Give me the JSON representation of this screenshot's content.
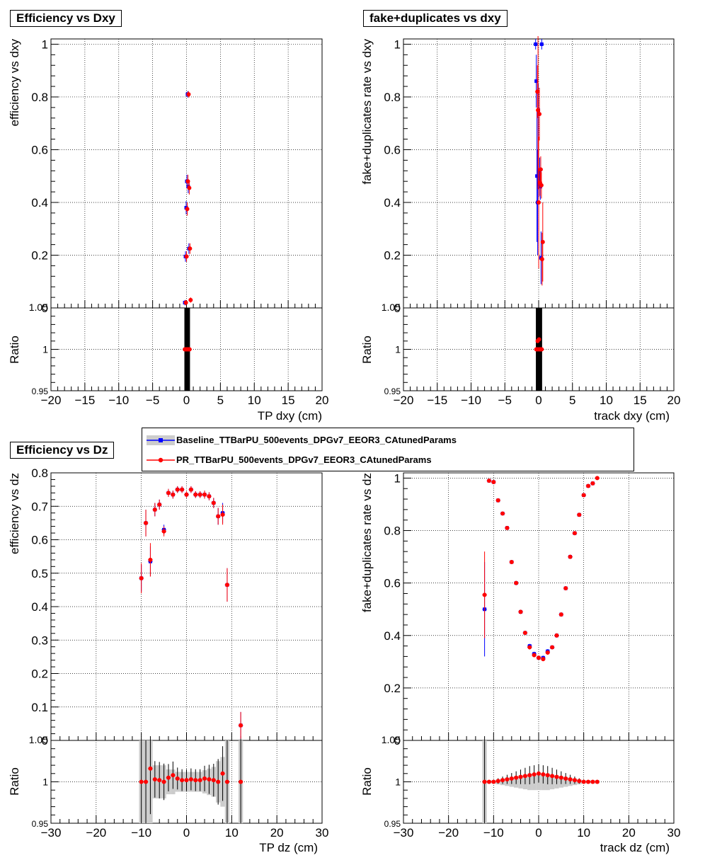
{
  "legend": {
    "entries": [
      {
        "label": "Baseline_TTBarPU_500events_DPGv7_EEOR3_CAtunedParams",
        "color": "#0000ff",
        "fill": "#cccccc"
      },
      {
        "label": "PR_TTBarPU_500events_DPGv7_EEOR3_CAtunedParams",
        "color": "#ff0000"
      }
    ]
  },
  "chart_data": [
    {
      "type": "scatter",
      "title": "Efficiency vs Dxy",
      "xlabel": "TP dxy (cm)",
      "ylabel": "efficiency vs dxy",
      "ratio_ylabel": "Ratio",
      "xlim": [
        -20,
        20
      ],
      "ylim": [
        0,
        1.02
      ],
      "ratio_ylim": [
        0.95,
        1.05
      ],
      "xticks": [
        -20,
        -15,
        -10,
        -5,
        0,
        5,
        10,
        15,
        20
      ],
      "xtick_labels": [
        "−20",
        "−15",
        "−10",
        "−5",
        "0",
        "5",
        "10",
        "15",
        "20"
      ],
      "yticks": [
        0,
        0.2,
        0.4,
        0.6,
        0.8,
        1
      ],
      "ytick_labels": [
        "0",
        "0.2",
        "0.4",
        "0.6",
        "0.8",
        "1"
      ],
      "ratio_yticks": [
        0.95,
        1,
        1.05
      ],
      "ratio_ytick_labels": [
        "0.95",
        "1",
        "1.05"
      ],
      "grid": true,
      "series": [
        {
          "name": "Baseline_TTBarPU_500events_DPGv7_EEOR3_CAtunedParams",
          "x": [
            -0.25,
            -0.15,
            -0.05,
            0.05,
            0.15,
            0.25,
            0.35
          ],
          "y": [
            0.02,
            0.195,
            0.38,
            0.48,
            0.81,
            0.46,
            0.225
          ],
          "yerr": [
            0.01,
            0.02,
            0.025,
            0.025,
            0.012,
            0.025,
            0.02
          ]
        },
        {
          "name": "PR_TTBarPU_500events_DPGv7_EEOR3_CAtunedParams",
          "x": [
            -0.25,
            -0.15,
            -0.05,
            0.05,
            0.15,
            0.25,
            0.35,
            0.45
          ],
          "y": [
            0.02,
            0.195,
            0.375,
            0.48,
            0.81,
            0.455,
            0.225,
            0.03
          ],
          "yerr": [
            0.01,
            0.02,
            0.025,
            0.025,
            0.012,
            0.025,
            0.02,
            0.01
          ]
        }
      ],
      "ratio": {
        "x": [
          -0.25,
          -0.15,
          -0.05,
          0.05,
          0.15,
          0.25,
          0.35,
          0.45
        ],
        "y": [
          1,
          1,
          1,
          1,
          1,
          1,
          1,
          1
        ]
      }
    },
    {
      "type": "scatter",
      "title": "fake+duplicates vs dxy",
      "xlabel": "track dxy (cm)",
      "ylabel": "fake+duplicates rate vs dxy",
      "ratio_ylabel": "Ratio",
      "xlim": [
        -20,
        20
      ],
      "ylim": [
        0,
        1.02
      ],
      "ratio_ylim": [
        0.95,
        1.05
      ],
      "xticks": [
        -20,
        -15,
        -10,
        -5,
        0,
        5,
        10,
        15,
        20
      ],
      "xtick_labels": [
        "−20",
        "−15",
        "−10",
        "−5",
        "0",
        "5",
        "10",
        "15",
        "20"
      ],
      "yticks": [
        0,
        0.2,
        0.4,
        0.6,
        0.8,
        1
      ],
      "ytick_labels": [
        "0",
        "0.2",
        "0.4",
        "0.6",
        "0.8",
        "1"
      ],
      "ratio_yticks": [
        0.95,
        1,
        1.05
      ],
      "ratio_ytick_labels": [
        "0.95",
        "1",
        "1.05"
      ],
      "grid": true,
      "series": [
        {
          "name": "Baseline_TTBarPU_500events_DPGv7_EEOR3_CAtunedParams",
          "x": [
            -0.45,
            -0.35,
            -0.25,
            -0.15,
            -0.05,
            0.05,
            0.15,
            0.25,
            0.35,
            0.45
          ],
          "y": [
            1.0,
            0.86,
            0.5,
            0.4,
            0.75,
            0.47,
            0.52,
            0.46,
            0.19,
            1.0
          ],
          "yerr": [
            0.02,
            0.1,
            0.25,
            0.2,
            0.1,
            0.05,
            0.05,
            0.05,
            0.1,
            0.02
          ]
        },
        {
          "name": "PR_TTBarPU_500events_DPGv7_EEOR3_CAtunedParams",
          "x": [
            -0.35,
            -0.25,
            -0.15,
            -0.05,
            0.05,
            0.15,
            0.25,
            0.35,
            0.45
          ],
          "y": [
            0.82,
            0.75,
            0.4,
            0.735,
            0.475,
            0.525,
            0.465,
            0.185,
            0.25
          ],
          "yerr": [
            0.1,
            0.3,
            0.25,
            0.1,
            0.05,
            0.05,
            0.05,
            0.1,
            0.15
          ]
        }
      ],
      "ratio": {
        "x": [
          -0.35,
          -0.25,
          -0.15,
          -0.05,
          0.05,
          0.15,
          0.25,
          0.35,
          0.45
        ],
        "y": [
          1,
          1,
          1.01,
          1,
          1.012,
          1,
          1,
          1,
          1
        ]
      }
    },
    {
      "type": "scatter",
      "title": "Efficiency vs Dz",
      "xlabel": "TP dz (cm)",
      "ylabel": "efficiency vs dz",
      "ratio_ylabel": "Ratio",
      "xlim": [
        -30,
        30
      ],
      "ylim": [
        0,
        0.8
      ],
      "ratio_ylim": [
        0.95,
        1.05
      ],
      "xticks": [
        -30,
        -20,
        -10,
        0,
        10,
        20,
        30
      ],
      "xtick_labels": [
        "−30",
        "−20",
        "−10",
        "0",
        "10",
        "20",
        "30"
      ],
      "yticks": [
        0,
        0.1,
        0.2,
        0.3,
        0.4,
        0.5,
        0.6,
        0.7,
        0.8
      ],
      "ytick_labels": [
        "0",
        "0.1",
        "0.2",
        "0.3",
        "0.4",
        "0.5",
        "0.6",
        "0.7",
        "0.8"
      ],
      "ratio_yticks": [
        0.95,
        1,
        1.05
      ],
      "ratio_ytick_labels": [
        "0.95",
        "1",
        "1.05"
      ],
      "grid": true,
      "series": [
        {
          "name": "Baseline_TTBarPU_500events_DPGv7_EEOR3_CAtunedParams",
          "x": [
            -10,
            -9,
            -8,
            -7,
            -6,
            -5,
            -4,
            -3,
            -2,
            -1,
            0,
            1,
            2,
            3,
            4,
            5,
            6,
            7,
            8,
            9,
            12
          ],
          "y": [
            0.485,
            0.65,
            0.535,
            0.69,
            0.705,
            0.63,
            0.74,
            0.735,
            0.75,
            0.75,
            0.735,
            0.75,
            0.735,
            0.735,
            0.735,
            0.73,
            0.71,
            0.67,
            0.68,
            0.465,
            0.045
          ],
          "yerr": [
            0.04,
            0.04,
            0.045,
            0.02,
            0.015,
            0.015,
            0.012,
            0.012,
            0.01,
            0.01,
            0.01,
            0.01,
            0.01,
            0.01,
            0.012,
            0.012,
            0.015,
            0.025,
            0.03,
            0.05,
            0.04
          ]
        },
        {
          "name": "PR_TTBarPU_500events_DPGv7_EEOR3_CAtunedParams",
          "x": [
            -10,
            -9,
            -8,
            -7,
            -6,
            -5,
            -4,
            -3,
            -2,
            -1,
            0,
            1,
            2,
            3,
            4,
            5,
            6,
            7,
            8,
            9,
            12
          ],
          "y": [
            0.485,
            0.65,
            0.54,
            0.69,
            0.705,
            0.625,
            0.74,
            0.735,
            0.75,
            0.75,
            0.735,
            0.75,
            0.735,
            0.735,
            0.735,
            0.73,
            0.71,
            0.67,
            0.675,
            0.465,
            0.045
          ],
          "yerr": [
            0.045,
            0.04,
            0.05,
            0.02,
            0.015,
            0.015,
            0.012,
            0.012,
            0.01,
            0.01,
            0.01,
            0.01,
            0.01,
            0.01,
            0.012,
            0.012,
            0.015,
            0.025,
            0.03,
            0.05,
            0.04
          ]
        }
      ],
      "ratio": {
        "x": [
          -10,
          -9,
          -8,
          -7,
          -6,
          -5,
          -4,
          -3,
          -2,
          -1,
          0,
          1,
          2,
          3,
          4,
          5,
          6,
          7,
          8,
          9,
          12
        ],
        "y": [
          1,
          1,
          1.016,
          1.003,
          1.002,
          1,
          1.005,
          1.008,
          1.004,
          1.002,
          1.002,
          1.003,
          1.002,
          1.002,
          1.004,
          1.003,
          1.002,
          1,
          1.01,
          1,
          1
        ],
        "band": [
          0.09,
          0.05,
          0.05,
          0.02,
          0.02,
          0.02,
          0.015,
          0.015,
          0.012,
          0.012,
          0.012,
          0.012,
          0.012,
          0.012,
          0.014,
          0.016,
          0.018,
          0.025,
          0.03,
          0.06,
          0.09
        ]
      }
    },
    {
      "type": "scatter",
      "title": "",
      "xlabel": "track dz (cm)",
      "ylabel": "fake+duplicates rate vs dz",
      "ratio_ylabel": "Ratio",
      "xlim": [
        -30,
        30
      ],
      "ylim": [
        0,
        1.02
      ],
      "ratio_ylim": [
        0.95,
        1.05
      ],
      "xticks": [
        -30,
        -20,
        -10,
        0,
        10,
        20,
        30
      ],
      "xtick_labels": [
        "−30",
        "−20",
        "−10",
        "0",
        "10",
        "20",
        "30"
      ],
      "yticks": [
        0,
        0.2,
        0.4,
        0.6,
        0.8,
        1
      ],
      "ytick_labels": [
        "0",
        "0.2",
        "0.4",
        "0.6",
        "0.8",
        "1"
      ],
      "ratio_yticks": [
        0.95,
        1,
        1.05
      ],
      "ratio_ytick_labels": [
        "0.95",
        "1",
        "1.05"
      ],
      "grid": true,
      "series": [
        {
          "name": "Baseline_TTBarPU_500events_DPGv7_EEOR3_CAtunedParams",
          "x": [
            -12,
            -11,
            -10,
            -9,
            -8,
            -7,
            -6,
            -5,
            -4,
            -3,
            -2,
            -1,
            0,
            1,
            2,
            3,
            4,
            5,
            6,
            7,
            8,
            9,
            10,
            11,
            12
          ],
          "y": [
            0.5,
            0.99,
            0.985,
            0.915,
            0.865,
            0.81,
            0.68,
            0.6,
            0.49,
            0.41,
            0.36,
            0.33,
            0.315,
            0.315,
            0.34,
            0.355,
            0.4,
            0.48,
            0.58,
            0.7,
            0.79,
            0.86,
            0.935,
            0.97,
            0.98
          ],
          "yerr": [
            0.18,
            0.005,
            0.005,
            0.006,
            0.006,
            0.006,
            0.008,
            0.008,
            0.008,
            0.008,
            0.008,
            0.008,
            0.008,
            0.008,
            0.008,
            0.008,
            0.008,
            0.008,
            0.008,
            0.008,
            0.006,
            0.006,
            0.005,
            0.005,
            0.004
          ]
        },
        {
          "name": "PR_TTBarPU_500events_DPGv7_EEOR3_CAtunedParams",
          "x": [
            -12,
            -11,
            -10,
            -9,
            -8,
            -7,
            -6,
            -5,
            -4,
            -3,
            -2,
            -1,
            0,
            1,
            2,
            3,
            4,
            5,
            6,
            7,
            8,
            9,
            10,
            11,
            12,
            13
          ],
          "y": [
            0.555,
            0.99,
            0.985,
            0.915,
            0.865,
            0.81,
            0.68,
            0.6,
            0.49,
            0.41,
            0.355,
            0.325,
            0.315,
            0.31,
            0.335,
            0.355,
            0.4,
            0.48,
            0.58,
            0.7,
            0.79,
            0.86,
            0.935,
            0.97,
            0.98,
            1.0
          ],
          "yerr": [
            0.165,
            0.005,
            0.005,
            0.006,
            0.006,
            0.006,
            0.008,
            0.008,
            0.008,
            0.008,
            0.008,
            0.008,
            0.008,
            0.008,
            0.008,
            0.008,
            0.008,
            0.008,
            0.008,
            0.008,
            0.006,
            0.006,
            0.005,
            0.005,
            0.004,
            0.003
          ]
        }
      ],
      "ratio": {
        "x": [
          -12,
          -11,
          -10,
          -9,
          -8,
          -7,
          -6,
          -5,
          -4,
          -3,
          -2,
          -1,
          0,
          1,
          2,
          3,
          4,
          5,
          6,
          7,
          8,
          9,
          10,
          11,
          12,
          13
        ],
        "y": [
          1,
          1,
          1,
          1.001,
          1.002,
          1.003,
          1.004,
          1.005,
          1.006,
          1.007,
          1.008,
          1.009,
          1.01,
          1.009,
          1.008,
          1.007,
          1.006,
          1.005,
          1.004,
          1.003,
          1.002,
          1.001,
          1,
          1,
          1,
          1
        ],
        "band": [
          0.09,
          0.002,
          0.002,
          0.003,
          0.004,
          0.005,
          0.006,
          0.007,
          0.008,
          0.009,
          0.01,
          0.01,
          0.01,
          0.01,
          0.01,
          0.009,
          0.008,
          0.007,
          0.006,
          0.005,
          0.004,
          0.003,
          0.002,
          0.002,
          0.002,
          0.002
        ]
      }
    }
  ]
}
